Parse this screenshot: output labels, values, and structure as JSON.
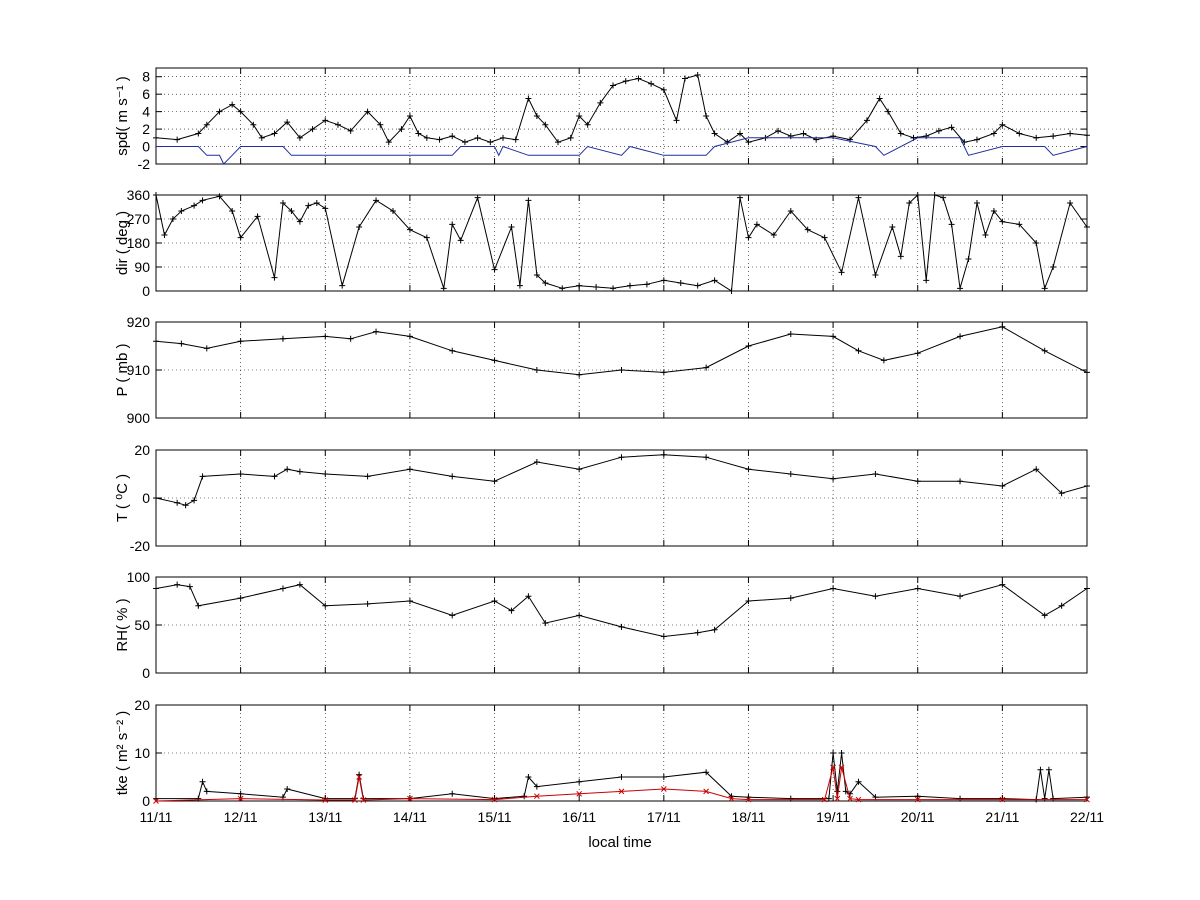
{
  "chart_data": [
    {
      "type": "line",
      "ylabel": "spd( m s⁻¹ )",
      "ylim": [
        -2,
        9
      ],
      "yticks": [
        -2,
        0,
        2,
        4,
        6,
        8
      ],
      "xlim": [
        0,
        11
      ],
      "grid": true,
      "series": [
        {
          "color": "#000000",
          "marker": "+",
          "x": [
            0,
            0.25,
            0.5,
            0.6,
            0.75,
            0.9,
            1,
            1.15,
            1.25,
            1.4,
            1.55,
            1.7,
            1.85,
            2,
            2.15,
            2.3,
            2.5,
            2.65,
            2.75,
            2.9,
            3,
            3.1,
            3.2,
            3.35,
            3.5,
            3.65,
            3.8,
            3.95,
            4.1,
            4.25,
            4.4,
            4.5,
            4.6,
            4.75,
            4.9,
            5,
            5.1,
            5.25,
            5.4,
            5.55,
            5.7,
            5.85,
            6,
            6.15,
            6.25,
            6.4,
            6.5,
            6.6,
            6.75,
            6.9,
            7,
            7.2,
            7.35,
            7.5,
            7.65,
            7.8,
            8,
            8.2,
            8.4,
            8.55,
            8.65,
            8.8,
            8.95,
            9.1,
            9.25,
            9.4,
            9.55,
            9.7,
            9.9,
            10,
            10.2,
            10.4,
            10.6,
            10.8,
            11
          ],
          "y": [
            1,
            0.8,
            1.5,
            2.5,
            4,
            4.8,
            4,
            2.5,
            1,
            1.5,
            2.8,
            1,
            2,
            3,
            2.5,
            1.8,
            4,
            2.5,
            0.5,
            2,
            3.5,
            1.5,
            1,
            0.8,
            1.2,
            0.5,
            1,
            0.5,
            1,
            0.8,
            5.5,
            3.5,
            2.5,
            0.5,
            1,
            3.5,
            2.5,
            5,
            7,
            7.5,
            7.8,
            7.2,
            6.5,
            3,
            7.8,
            8.2,
            3.5,
            1.5,
            0.5,
            1.5,
            0.5,
            1,
            1.8,
            1.2,
            1.5,
            0.8,
            1.2,
            0.8,
            3,
            5.5,
            4,
            1.5,
            1,
            1.2,
            1.8,
            2.2,
            0.5,
            0.8,
            1.5,
            2.5,
            1.5,
            1,
            1.2,
            1.5,
            1.3
          ]
        },
        {
          "color": "#1f2fa0",
          "marker": "",
          "x": [
            0,
            0.5,
            0.6,
            0.75,
            0.8,
            0.9,
            1,
            1.5,
            1.6,
            2,
            3,
            3.5,
            3.6,
            4,
            4.05,
            4.1,
            4.4,
            5,
            5.1,
            5.5,
            5.6,
            6,
            6.3,
            6.5,
            6.6,
            7,
            7.5,
            8,
            8.5,
            8.6,
            9,
            9.5,
            9.6,
            10,
            10.5,
            10.6,
            11
          ],
          "y": [
            0,
            0,
            -1,
            -1,
            -2,
            -1,
            0,
            0,
            -1,
            -1,
            -1,
            -1,
            0,
            0,
            -1,
            0,
            -1,
            -1,
            0,
            -1,
            0,
            -1,
            -1,
            -1,
            0,
            1,
            1,
            1,
            0,
            -1,
            1,
            1,
            -1,
            0,
            0,
            -1,
            0
          ]
        }
      ]
    },
    {
      "type": "line",
      "ylabel": "dir ( deg )",
      "ylim": [
        0,
        360
      ],
      "yticks": [
        0,
        90,
        180,
        270,
        360
      ],
      "xlim": [
        0,
        11
      ],
      "grid": true,
      "series": [
        {
          "color": "#000000",
          "marker": "+",
          "x": [
            0,
            0.1,
            0.2,
            0.3,
            0.45,
            0.55,
            0.75,
            0.9,
            1,
            1.2,
            1.4,
            1.5,
            1.6,
            1.7,
            1.8,
            1.9,
            2,
            2.2,
            2.4,
            2.6,
            2.8,
            3,
            3.2,
            3.4,
            3.5,
            3.6,
            3.8,
            4,
            4.2,
            4.3,
            4.4,
            4.5,
            4.6,
            4.8,
            5,
            5.2,
            5.4,
            5.6,
            5.8,
            6,
            6.2,
            6.4,
            6.6,
            6.8,
            6.9,
            7,
            7.1,
            7.3,
            7.5,
            7.7,
            7.9,
            8.1,
            8.3,
            8.5,
            8.7,
            8.8,
            8.9,
            9,
            9.1,
            9.2,
            9.3,
            9.4,
            9.5,
            9.6,
            9.7,
            9.8,
            9.9,
            10,
            10.2,
            10.4,
            10.5,
            10.6,
            10.8,
            11
          ],
          "y": [
            360,
            210,
            270,
            300,
            320,
            340,
            355,
            300,
            200,
            280,
            50,
            330,
            300,
            260,
            320,
            330,
            310,
            20,
            240,
            340,
            300,
            230,
            200,
            10,
            250,
            190,
            350,
            80,
            240,
            20,
            340,
            60,
            30,
            10,
            20,
            15,
            10,
            20,
            25,
            40,
            30,
            20,
            40,
            0,
            350,
            200,
            250,
            210,
            300,
            230,
            200,
            70,
            350,
            60,
            240,
            130,
            330,
            360,
            40,
            360,
            350,
            250,
            10,
            120,
            330,
            210,
            300,
            260,
            250,
            180,
            10,
            90,
            330,
            240
          ]
        }
      ]
    },
    {
      "type": "line",
      "ylabel": "P ( mb )",
      "ylim": [
        900,
        920
      ],
      "yticks": [
        900,
        910,
        920
      ],
      "xlim": [
        0,
        11
      ],
      "grid": true,
      "series": [
        {
          "color": "#000000",
          "marker": "+",
          "x": [
            0,
            0.3,
            0.6,
            1,
            1.5,
            2,
            2.3,
            2.6,
            3,
            3.5,
            4,
            4.5,
            5,
            5.5,
            6,
            6.5,
            7,
            7.5,
            8,
            8.3,
            8.6,
            9,
            9.5,
            10,
            10.5,
            11
          ],
          "y": [
            916,
            915.5,
            914.5,
            916,
            916.5,
            917,
            916.5,
            918,
            917,
            914,
            912,
            910,
            909,
            910,
            909.5,
            910.5,
            915,
            917.5,
            917,
            914,
            912,
            913.5,
            917,
            919,
            914,
            909.5
          ]
        }
      ]
    },
    {
      "type": "line",
      "ylabel": "T ( ⁰C )",
      "ylim": [
        -20,
        20
      ],
      "yticks": [
        -20,
        0,
        20
      ],
      "xlim": [
        0,
        11
      ],
      "grid": true,
      "series": [
        {
          "color": "#000000",
          "marker": "+",
          "x": [
            0,
            0.25,
            0.35,
            0.45,
            0.55,
            1,
            1.4,
            1.55,
            1.7,
            2,
            2.5,
            3,
            3.5,
            4,
            4.5,
            5,
            5.5,
            6,
            6.5,
            7,
            7.5,
            8,
            8.5,
            9,
            9.5,
            10,
            10.4,
            10.7,
            11
          ],
          "y": [
            0,
            -2,
            -3,
            -1,
            9,
            10,
            9,
            12,
            11,
            10,
            9,
            12,
            9,
            7,
            15,
            12,
            17,
            18,
            17,
            12,
            10,
            8,
            10,
            7,
            7,
            5,
            12,
            2,
            5
          ]
        }
      ]
    },
    {
      "type": "line",
      "ylabel": "RH( % )",
      "ylim": [
        0,
        100
      ],
      "yticks": [
        0,
        50,
        100
      ],
      "xlim": [
        0,
        11
      ],
      "grid": true,
      "series": [
        {
          "color": "#000000",
          "marker": "+",
          "x": [
            0,
            0.25,
            0.4,
            0.5,
            1,
            1.5,
            1.7,
            2,
            2.5,
            3,
            3.5,
            4,
            4.2,
            4.4,
            4.6,
            5,
            5.5,
            6,
            6.4,
            6.6,
            7,
            7.5,
            8,
            8.5,
            9,
            9.5,
            10,
            10.5,
            10.7,
            11
          ],
          "y": [
            88,
            92,
            90,
            70,
            78,
            88,
            92,
            70,
            72,
            75,
            60,
            75,
            65,
            80,
            52,
            60,
            48,
            38,
            42,
            45,
            75,
            78,
            88,
            80,
            88,
            80,
            92,
            60,
            70,
            88
          ]
        }
      ]
    },
    {
      "type": "line",
      "ylabel": "tke ( m² s⁻² )",
      "ylim": [
        0,
        20
      ],
      "yticks": [
        0,
        10,
        20
      ],
      "xlim": [
        0,
        11
      ],
      "xticks": [
        "11/11",
        "12/11",
        "13/11",
        "14/11",
        "15/11",
        "16/11",
        "17/11",
        "18/11",
        "19/11",
        "20/11",
        "21/11",
        "22/11"
      ],
      "xlabel": "local time",
      "grid": true,
      "series": [
        {
          "color": "#000000",
          "marker": "+",
          "x": [
            0,
            0.5,
            0.55,
            0.6,
            1,
            1.5,
            1.55,
            2,
            2.35,
            2.4,
            2.45,
            3,
            3.5,
            4,
            4.35,
            4.4,
            4.5,
            5,
            5.5,
            6,
            6.5,
            6.8,
            7,
            7.5,
            7.95,
            8,
            8.05,
            8.1,
            8.15,
            8.2,
            8.3,
            8.5,
            9,
            9.5,
            10,
            10.4,
            10.45,
            10.5,
            10.55,
            10.6,
            11
          ],
          "y": [
            0.5,
            0.5,
            4,
            2,
            1.5,
            0.8,
            2.5,
            0.5,
            0.5,
            5.5,
            0.5,
            0.5,
            1.5,
            0.5,
            1,
            5,
            3,
            4,
            5,
            5,
            6,
            1,
            0.8,
            0.5,
            0.5,
            10,
            2,
            10,
            2,
            1.5,
            4,
            0.8,
            1,
            0.5,
            0.5,
            0.3,
            6.5,
            0.5,
            6.5,
            0.5,
            0.8
          ]
        },
        {
          "color": "#cc0000",
          "marker": "x",
          "x": [
            0,
            1,
            2,
            2.35,
            2.4,
            2.45,
            3,
            4,
            4.5,
            5,
            5.5,
            6,
            6.5,
            6.8,
            7,
            7.9,
            8,
            8.05,
            8.1,
            8.2,
            8.3,
            9,
            10,
            11
          ],
          "y": [
            0,
            0.5,
            0.2,
            0.2,
            5,
            0.2,
            0.5,
            0.3,
            1,
            1.5,
            2,
            2.5,
            2,
            0.5,
            0.3,
            0.3,
            7,
            0.5,
            7,
            0.5,
            0.3,
            0.3,
            0.3,
            0.3
          ]
        }
      ]
    }
  ]
}
